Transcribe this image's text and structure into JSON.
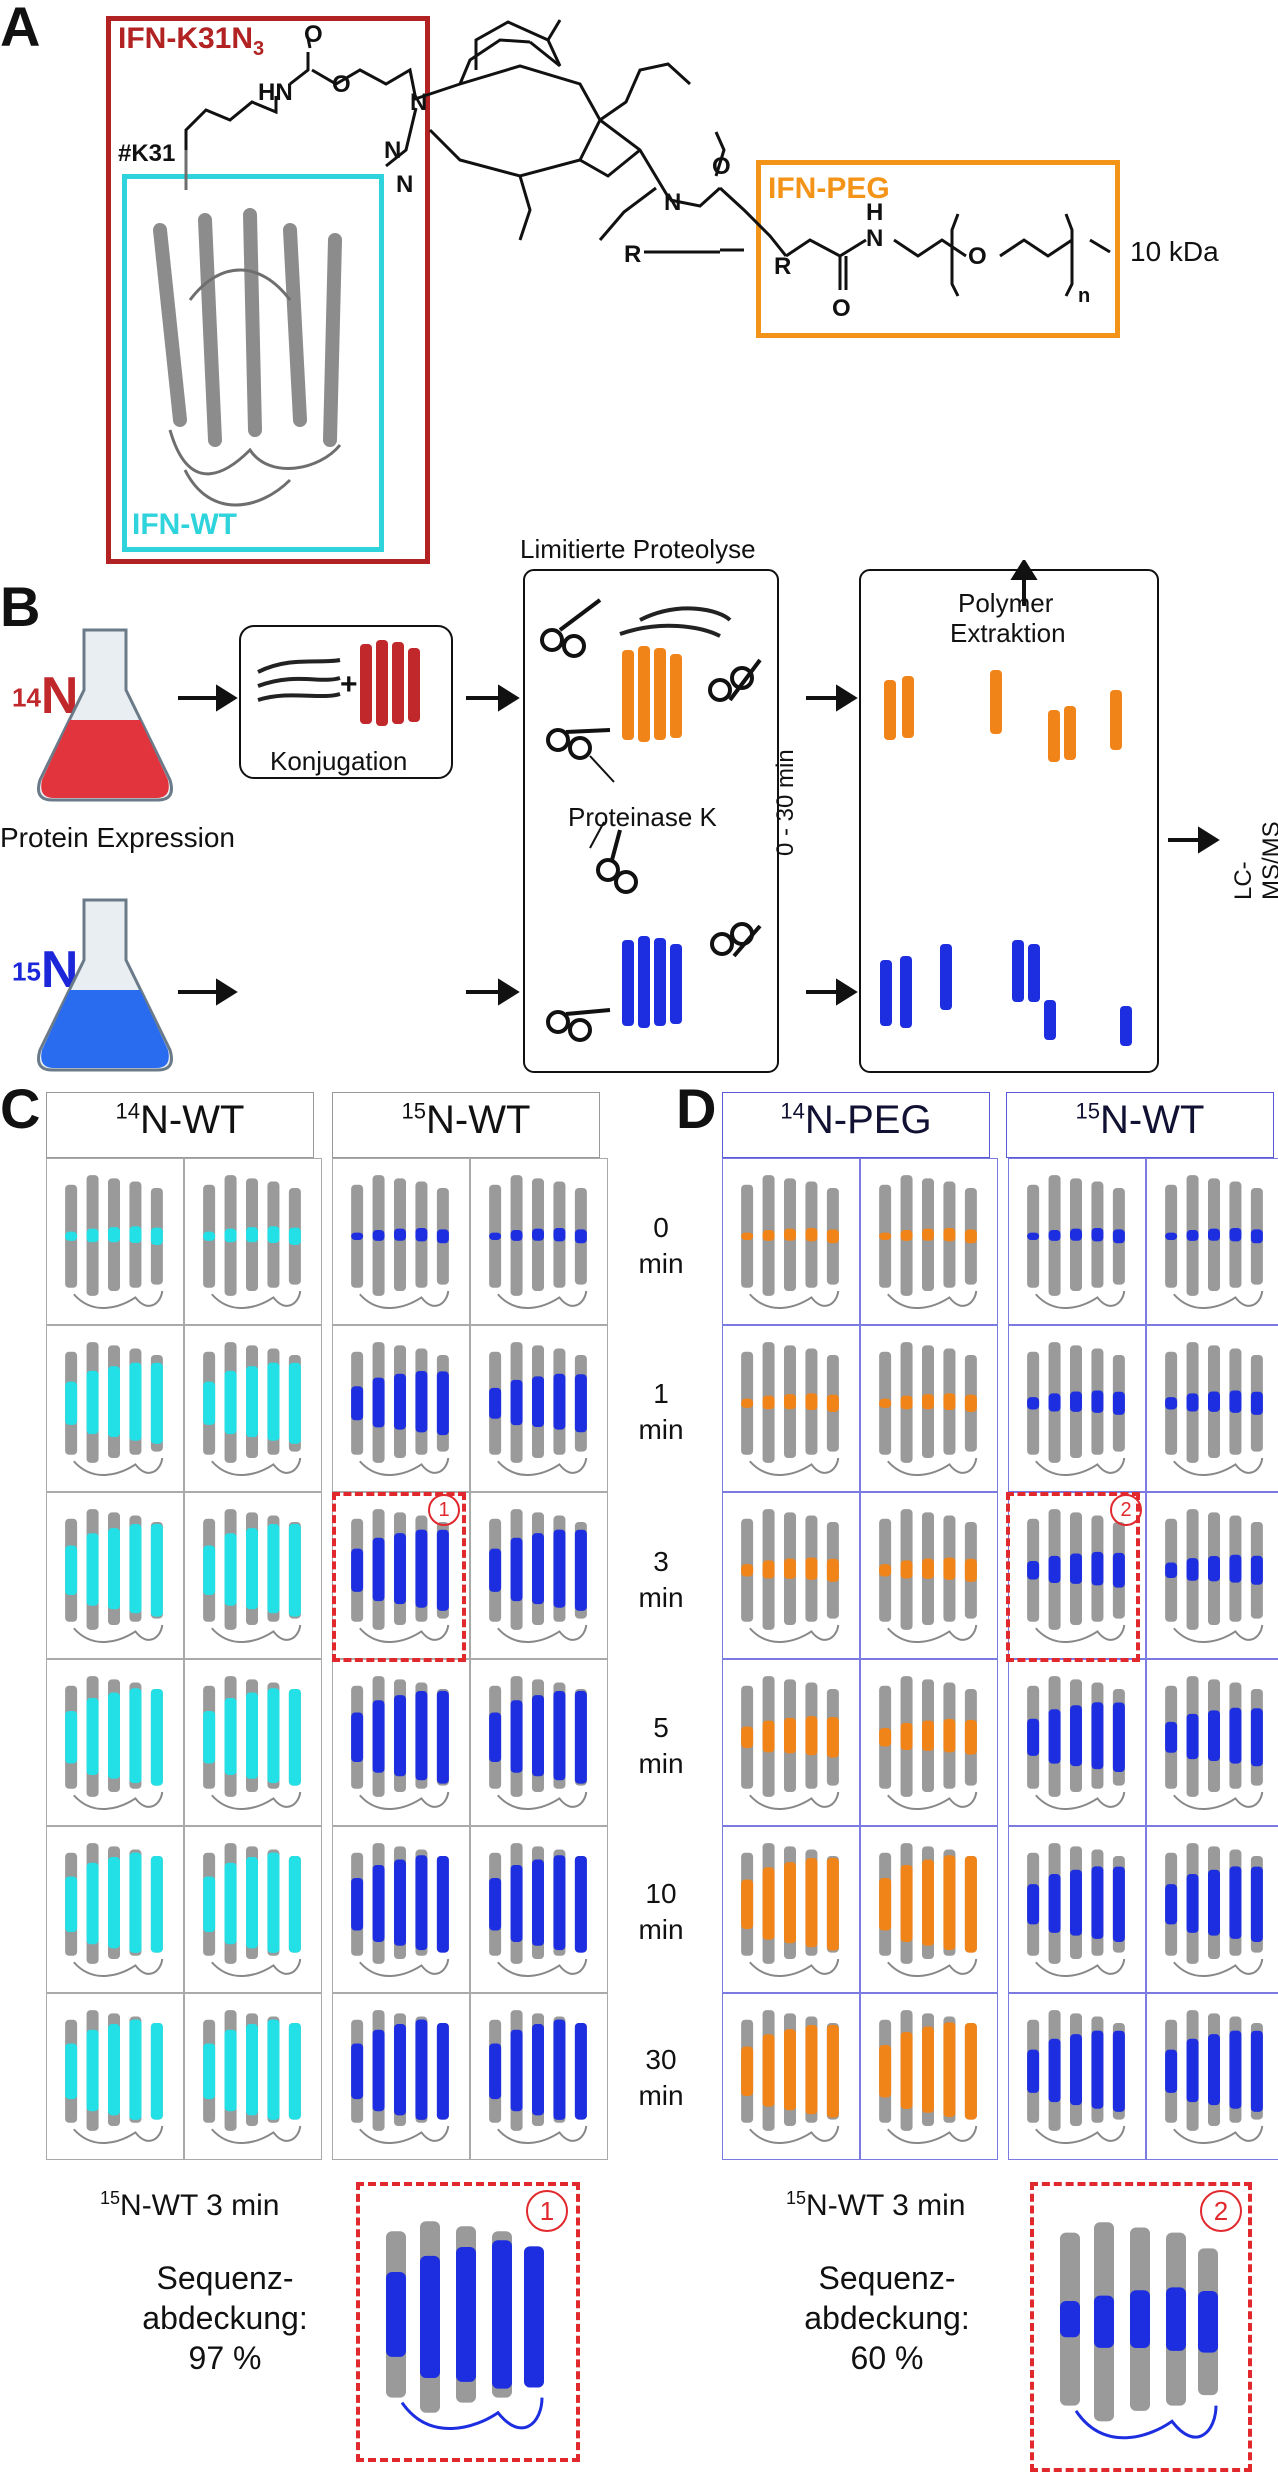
{
  "panels": {
    "a": {
      "letter": "A",
      "box_k31n3_label": "IFN-K31N",
      "box_k31n3_sub": "3",
      "box_wt_label": "IFN-WT",
      "box_peg_label": "IFN-PEG",
      "k31_label": "#K31",
      "mass_label": "10 kDa",
      "chem_labels": {
        "o1": "O",
        "o2": "O",
        "o3": "O",
        "o4": "O",
        "o5": "O",
        "hn": "HN",
        "h": "H",
        "n1": "N",
        "n2": "N",
        "n3": "N",
        "n4": "N",
        "n5": "N",
        "r1": "R",
        "r2": "R",
        "n_sub": "n"
      },
      "colors": {
        "k31n3": "#b22222",
        "wt": "#2ed3dc",
        "peg": "#f39418"
      }
    },
    "b": {
      "letter": "B",
      "n14": "14",
      "n14_sym": "N",
      "n15": "15",
      "n15_sym": "N",
      "expression": "Protein Expression",
      "konjugation": "Konjugation",
      "plus": "+",
      "limited_proteolysis": "Limitierte Proteolyse",
      "proteinase": "Proteinase K",
      "time_range": "0 - 30 min",
      "polymer_extraction_1": "Polymer",
      "polymer_extraction_2": "Extraktion",
      "lcms": "LC-MS/MS"
    },
    "c": {
      "letter": "C",
      "hdr1_sup": "14",
      "hdr1": "N-WT",
      "hdr2_sup": "15",
      "hdr2": "N-WT",
      "marker": "1",
      "bottom_title_sup": "15",
      "bottom_title": "N-WT 3 min",
      "coverage_1": "Sequenz-",
      "coverage_2": "abdeckung:",
      "coverage_value": "97 %"
    },
    "d": {
      "letter": "D",
      "hdr1_sup": "14",
      "hdr1": "N-PEG",
      "hdr2_sup": "15",
      "hdr2": "N-WT",
      "marker": "2",
      "bottom_title_sup": "15",
      "bottom_title": "N-WT 3 min",
      "coverage_1": "Sequenz-",
      "coverage_2": "abdeckung:",
      "coverage_value": "60 %"
    },
    "times": [
      {
        "value": "0",
        "unit": "min"
      },
      {
        "value": "1",
        "unit": "min"
      },
      {
        "value": "3",
        "unit": "min"
      },
      {
        "value": "5",
        "unit": "min"
      },
      {
        "value": "10",
        "unit": "min"
      },
      {
        "value": "30",
        "unit": "min"
      }
    ],
    "colors": {
      "cyan": "#22e0e6",
      "blue": "#1c2ee0",
      "orange": "#f08419",
      "gray": "#9a9a9a",
      "red_dash": "#e0282d",
      "red_14n": "#c0282c",
      "blue_15n": "#1b27d8"
    }
  }
}
